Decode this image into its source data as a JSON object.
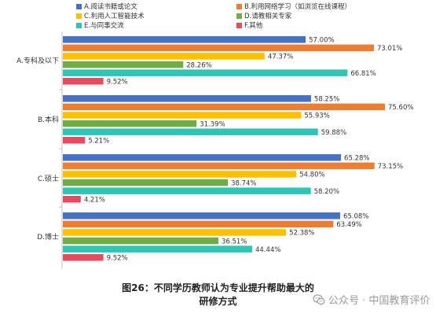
{
  "chart_data": {
    "type": "bar",
    "orientation": "horizontal",
    "categories": [
      "A.专科及以下",
      "B.本科",
      "C.硕士",
      "D.博士"
    ],
    "series": [
      {
        "name": "A.阅读书籍或论文",
        "color": "#4472C4",
        "values": [
          57.0,
          58.25,
          65.28,
          65.08
        ],
        "labels": [
          "57.00%",
          "58.25%",
          "65.28%",
          "65.08%"
        ]
      },
      {
        "name": "B.利用网络学习（如浏览在线课程）",
        "color": "#ED7D31",
        "values": [
          73.01,
          75.6,
          73.15,
          63.49
        ],
        "labels": [
          "73.01%",
          "75.60%",
          "73.15%",
          "63.49%"
        ]
      },
      {
        "name": "C.利用人工智能技术",
        "color": "#FFC000",
        "values": [
          47.37,
          55.93,
          54.8,
          52.38
        ],
        "labels": [
          "47.37%",
          "55.93%",
          "54.80%",
          "52.38%"
        ]
      },
      {
        "name": "D.请教相关专家",
        "color": "#70AD47",
        "values": [
          28.26,
          31.39,
          38.74,
          36.51
        ],
        "labels": [
          "28.26%",
          "31.39%",
          "38.74%",
          "36.51%"
        ]
      },
      {
        "name": "E.与同事交流",
        "color": "#2EC4B6",
        "values": [
          66.81,
          59.88,
          58.2,
          44.44
        ],
        "labels": [
          "66.81%",
          "59.88%",
          "58.20%",
          "44.44%"
        ]
      },
      {
        "name": "F.其他",
        "color": "#E84A5F",
        "values": [
          9.52,
          5.21,
          4.21,
          9.52
        ],
        "labels": [
          "9.52%",
          "5.21%",
          "4.21%",
          "9.52%"
        ]
      }
    ],
    "xlim": [
      0,
      85
    ],
    "grid": false,
    "legend_position": "top"
  },
  "caption": {
    "line1": "图26：不同学历教师认为专业提升帮助最大的",
    "line2": "研修方式"
  },
  "watermark": {
    "text": "公众号 · 中国教育评价",
    "icon": "wechat-icon"
  }
}
